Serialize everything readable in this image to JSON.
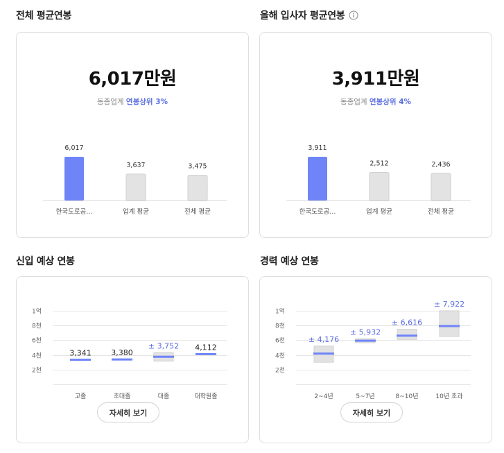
{
  "sections": {
    "overall_title": "전체 평균연봉",
    "newhire_title": "올해 입사자 평균연봉",
    "entry_title": "신입 예상 연봉",
    "career_title": "경력 예상 연봉"
  },
  "overall": {
    "big_value": "6,017만원",
    "rank_prefix": "동종업계",
    "rank_highlight": "연봉상위 3%"
  },
  "newhire": {
    "big_value": "3,911만원",
    "rank_prefix": "동종업계",
    "rank_highlight": "연봉상위 4%"
  },
  "buttons": {
    "detail_label": "자세히 보기"
  },
  "icons": {
    "info": "info-icon"
  },
  "colors": {
    "accent": "#6e84f7",
    "accent_text": "#5b6ee1",
    "gray_bar": "#e3e3e3",
    "range_box": "#e2e2e2"
  },
  "chart_data": [
    {
      "type": "bar",
      "id": "overall",
      "categories": [
        "한국도로공...",
        "업계 평균",
        "전체 평균"
      ],
      "values": [
        6017,
        3637,
        3475
      ],
      "labels": [
        "6,017",
        "3,637",
        "3,475"
      ],
      "highlight_index": 0
    },
    {
      "type": "bar",
      "id": "newhire",
      "categories": [
        "한국도로공...",
        "업계 평균",
        "전체 평균"
      ],
      "values": [
        3911,
        2512,
        2436
      ],
      "labels": [
        "3,911",
        "2,512",
        "2,436"
      ],
      "highlight_index": 0
    },
    {
      "type": "range",
      "id": "entry",
      "categories": [
        "고졸",
        "초대졸",
        "대졸",
        "대학원졸"
      ],
      "y_ticks": [
        "1억",
        "8천",
        "6천",
        "4천",
        "2천"
      ],
      "y_tick_values": [
        10000,
        8000,
        6000,
        4000,
        2000
      ],
      "ylim": [
        0,
        10000
      ],
      "points": [
        {
          "value": 3341,
          "label": "3,341",
          "range": null
        },
        {
          "value": 3380,
          "label": "3,380",
          "range": null
        },
        {
          "value": 3752,
          "label": "± 3,752",
          "range": [
            3150,
            4300
          ]
        },
        {
          "value": 4112,
          "label": "4,112",
          "range": null
        }
      ]
    },
    {
      "type": "range",
      "id": "career",
      "categories": [
        "2~4년",
        "5~7년",
        "8~10년",
        "10년 초과"
      ],
      "y_ticks": [
        "1억",
        "8천",
        "6천",
        "4천",
        "2천"
      ],
      "y_tick_values": [
        10000,
        8000,
        6000,
        4000,
        2000
      ],
      "ylim": [
        0,
        10000
      ],
      "points": [
        {
          "value": 4176,
          "label": "± 4,176",
          "range": [
            3000,
            5200
          ]
        },
        {
          "value": 5932,
          "label": "± 5,932",
          "range": [
            5650,
            6200
          ]
        },
        {
          "value": 6616,
          "label": "± 6,616",
          "range": [
            6100,
            7500
          ]
        },
        {
          "value": 7922,
          "label": "± 7,922",
          "range": [
            6500,
            10000
          ]
        }
      ]
    }
  ]
}
